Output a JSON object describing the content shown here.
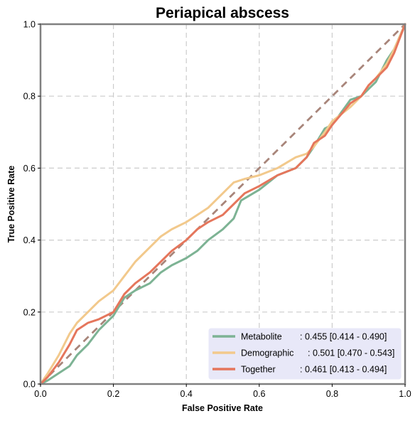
{
  "chart_data": {
    "type": "line",
    "title": "Periapical abscess",
    "xlabel": "False Positive Rate",
    "ylabel": "True Positive Rate",
    "xlim": [
      0,
      1
    ],
    "ylim": [
      0,
      1
    ],
    "xticks": [
      "0.0",
      "0.2",
      "0.4",
      "0.6",
      "0.8",
      "1.0"
    ],
    "yticks": [
      "0.0",
      "0.2",
      "0.4",
      "0.6",
      "0.8",
      "1.0"
    ],
    "grid": true,
    "legend_position": "lower-right",
    "diagonal": {
      "x": [
        0,
        1
      ],
      "y": [
        0,
        1
      ],
      "color": "#a8857a",
      "style": "dashed"
    },
    "series": [
      {
        "name": "Metabolite",
        "auc_label": ": 0.455 [0.414 - 0.490]",
        "color": "#7db394",
        "x": [
          0.0,
          0.02,
          0.05,
          0.08,
          0.1,
          0.13,
          0.16,
          0.2,
          0.23,
          0.26,
          0.3,
          0.33,
          0.36,
          0.4,
          0.43,
          0.46,
          0.5,
          0.53,
          0.55,
          0.6,
          0.65,
          0.7,
          0.73,
          0.75,
          0.78,
          0.8,
          0.85,
          0.88,
          0.9,
          0.92,
          0.95,
          0.97,
          1.0
        ],
        "y": [
          0.0,
          0.01,
          0.03,
          0.05,
          0.08,
          0.11,
          0.15,
          0.19,
          0.24,
          0.26,
          0.28,
          0.31,
          0.33,
          0.35,
          0.37,
          0.4,
          0.43,
          0.46,
          0.51,
          0.54,
          0.58,
          0.6,
          0.63,
          0.66,
          0.71,
          0.72,
          0.79,
          0.8,
          0.82,
          0.84,
          0.9,
          0.93,
          1.0
        ]
      },
      {
        "name": "Demographic",
        "auc_label": ": 0.501 [0.470 - 0.543]",
        "color": "#f2c98c",
        "x": [
          0.0,
          0.02,
          0.05,
          0.08,
          0.1,
          0.13,
          0.16,
          0.2,
          0.23,
          0.26,
          0.3,
          0.33,
          0.36,
          0.4,
          0.43,
          0.46,
          0.5,
          0.53,
          0.56,
          0.6,
          0.65,
          0.7,
          0.73,
          0.75,
          0.78,
          0.8,
          0.85,
          0.88,
          0.9,
          0.92,
          0.95,
          0.97,
          1.0
        ],
        "y": [
          0.0,
          0.03,
          0.08,
          0.14,
          0.17,
          0.2,
          0.23,
          0.26,
          0.3,
          0.34,
          0.38,
          0.41,
          0.43,
          0.45,
          0.47,
          0.49,
          0.53,
          0.56,
          0.57,
          0.58,
          0.6,
          0.63,
          0.64,
          0.66,
          0.7,
          0.73,
          0.77,
          0.8,
          0.83,
          0.85,
          0.89,
          0.93,
          1.0
        ]
      },
      {
        "name": "Together",
        "auc_label": ": 0.461 [0.413 - 0.494]",
        "color": "#e5765c",
        "x": [
          0.0,
          0.02,
          0.05,
          0.08,
          0.1,
          0.13,
          0.16,
          0.2,
          0.23,
          0.26,
          0.3,
          0.33,
          0.36,
          0.4,
          0.43,
          0.46,
          0.5,
          0.53,
          0.56,
          0.6,
          0.65,
          0.7,
          0.73,
          0.75,
          0.78,
          0.8,
          0.85,
          0.88,
          0.9,
          0.92,
          0.95,
          0.97,
          1.0
        ],
        "y": [
          0.0,
          0.02,
          0.06,
          0.11,
          0.15,
          0.17,
          0.18,
          0.2,
          0.25,
          0.28,
          0.31,
          0.34,
          0.37,
          0.4,
          0.43,
          0.45,
          0.47,
          0.5,
          0.53,
          0.55,
          0.58,
          0.6,
          0.63,
          0.67,
          0.69,
          0.72,
          0.78,
          0.8,
          0.83,
          0.85,
          0.88,
          0.92,
          1.0
        ]
      }
    ]
  }
}
